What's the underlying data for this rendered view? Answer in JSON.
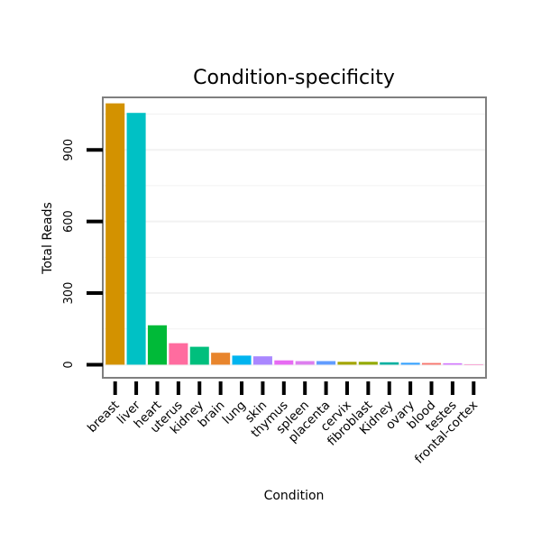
{
  "chart_data": {
    "type": "bar",
    "title": "Condition-specificity",
    "xlabel": "Condition",
    "ylabel": "Total Reads",
    "ylim": [
      -55,
      1120
    ],
    "yticks": [
      0,
      300,
      600,
      900
    ],
    "ytick_labels": [
      "0",
      "300",
      "600",
      "900"
    ],
    "grid": true,
    "legend": "none",
    "categories": [
      "breast",
      "liver",
      "heart",
      "uterus",
      "kidney",
      "brain",
      "lung",
      "skin",
      "thymus",
      "spleen",
      "placenta",
      "cervix",
      "fibroblast",
      "Kidney",
      "ovary",
      "blood",
      "testes",
      "frontal-cortex"
    ],
    "values": [
      1095,
      1055,
      165,
      90,
      75,
      50,
      38,
      35,
      18,
      15,
      15,
      12,
      12,
      10,
      8,
      7,
      6,
      0
    ],
    "colors": [
      "#D39200",
      "#00C1C5",
      "#00BA38",
      "#FF6C9F",
      "#00BF7D",
      "#E8852D",
      "#00B4EF",
      "#A987FF",
      "#E76BF3",
      "#DD7FEF",
      "#619CFF",
      "#A3A500",
      "#93AA00",
      "#00B0A0",
      "#35A2FF",
      "#F8766D",
      "#D376FF",
      "#FF62BC"
    ]
  }
}
